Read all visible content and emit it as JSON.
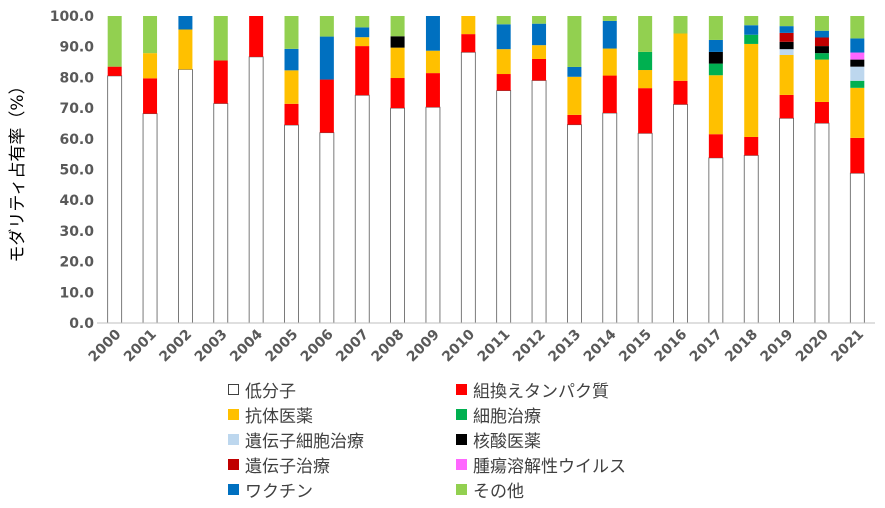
{
  "chart_data": {
    "type": "bar",
    "stacked": true,
    "title": "",
    "xlabel": "",
    "ylabel": "モダリティ占有率（%）",
    "ylim": [
      0,
      100
    ],
    "yticks": [
      "0.0",
      "10.0",
      "20.0",
      "30.0",
      "40.0",
      "50.0",
      "60.0",
      "70.0",
      "80.0",
      "90.0",
      "100.0"
    ],
    "grid": false,
    "legend_position": "bottom",
    "categories": [
      "2000",
      "2001",
      "2002",
      "2003",
      "2004",
      "2005",
      "2006",
      "2007",
      "2008",
      "2009",
      "2010",
      "2011",
      "2012",
      "2013",
      "2014",
      "2015",
      "2016",
      "2017",
      "2018",
      "2019",
      "2020",
      "2021"
    ],
    "series": [
      {
        "name": "低分子",
        "color": "#ffffff",
        "values": [
          80.5,
          68.2,
          82.6,
          71.5,
          86.7,
          64.5,
          62.0,
          74.2,
          70.0,
          70.3,
          88.2,
          75.7,
          79.0,
          64.6,
          68.4,
          61.8,
          71.2,
          53.8,
          54.6,
          66.7,
          65.1,
          48.8
        ]
      },
      {
        "name": "組換えタンパク質",
        "color": "#ff0000",
        "values": [
          3.0,
          11.5,
          0,
          14.0,
          13.3,
          6.9,
          17.3,
          16.0,
          9.8,
          11.1,
          5.9,
          5.4,
          7.0,
          3.2,
          12.2,
          14.7,
          7.7,
          7.7,
          6.0,
          7.6,
          6.9,
          11.5
        ]
      },
      {
        "name": "抗体医薬",
        "color": "#ffc000",
        "values": [
          0,
          8.2,
          13.0,
          0,
          0,
          10.9,
          0,
          2.9,
          9.9,
          7.3,
          5.9,
          8.1,
          4.5,
          12.4,
          8.8,
          5.9,
          15.4,
          19.2,
          30.3,
          13.0,
          13.8,
          16.3
        ]
      },
      {
        "name": "細胞治療",
        "color": "#00b050",
        "values": [
          0,
          0,
          0,
          0,
          0,
          0,
          0,
          0,
          0,
          0,
          0,
          0,
          0,
          0,
          0,
          5.9,
          0,
          3.8,
          3.0,
          0,
          2.1,
          2.3
        ]
      },
      {
        "name": "遺伝子細胞治療",
        "color": "#bdd7ee",
        "values": [
          0,
          0,
          0,
          0,
          0,
          0,
          0,
          0,
          0,
          0,
          0,
          0,
          0,
          0,
          0,
          0,
          0,
          0,
          0,
          1.9,
          0,
          4.6
        ]
      },
      {
        "name": "核酸医薬",
        "color": "#000000",
        "values": [
          0,
          0,
          0,
          0,
          0,
          0,
          0,
          0,
          3.7,
          0,
          0,
          0,
          0,
          0,
          0,
          0,
          0,
          3.8,
          0,
          2.4,
          2.3,
          2.3
        ]
      },
      {
        "name": "遺伝子治療",
        "color": "#c00000",
        "values": [
          0,
          0,
          0,
          0,
          0,
          0,
          0,
          0,
          0,
          0,
          0,
          0,
          0,
          0,
          0,
          0,
          0,
          0,
          0,
          2.9,
          2.8,
          0
        ]
      },
      {
        "name": "腫瘍溶解性ウイルス",
        "color": "#ff66ff",
        "values": [
          0,
          0,
          0,
          0,
          0,
          0,
          0,
          0,
          0,
          0,
          0,
          0,
          0,
          0,
          0,
          0,
          0,
          0,
          0,
          0,
          0,
          2.3
        ]
      },
      {
        "name": "ワクチン",
        "color": "#0070c0",
        "values": [
          0,
          0,
          4.4,
          0,
          0,
          7.0,
          14.0,
          3.2,
          0,
          11.3,
          0,
          8.1,
          7.0,
          3.2,
          9.0,
          0,
          0,
          3.9,
          3.1,
          2.2,
          2.2,
          4.6
        ]
      },
      {
        "name": "その他",
        "color": "#92d050",
        "values": [
          16.5,
          12.1,
          0,
          14.5,
          0,
          10.7,
          6.7,
          3.7,
          6.6,
          0,
          0,
          2.7,
          2.5,
          16.6,
          1.6,
          11.7,
          5.7,
          7.8,
          3.0,
          3.3,
          4.8,
          7.3
        ]
      }
    ]
  },
  "legend": {
    "left": [
      "低分子",
      "抗体医薬",
      "遺伝子細胞治療",
      "遺伝子治療",
      "ワクチン"
    ],
    "right": [
      "組換えタンパク質",
      "細胞治療",
      "核酸医薬",
      "腫瘍溶解性ウイルス",
      "その他"
    ]
  }
}
